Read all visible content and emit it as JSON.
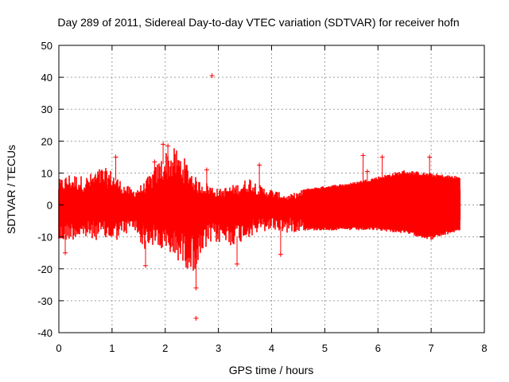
{
  "chart_data": {
    "type": "scatter",
    "title": "Day 289 of 2011, Sidereal Day-to-day VTEC variation (SDTVAR) for receiver hofn",
    "xlabel": "GPS time / hours",
    "ylabel": "SDTVAR / TECUs",
    "xlim": [
      0,
      8
    ],
    "ylim": [
      -40,
      50
    ],
    "xticks": [
      0,
      1,
      2,
      3,
      4,
      5,
      6,
      7,
      8
    ],
    "yticks": [
      -40,
      -30,
      -20,
      -10,
      0,
      10,
      20,
      30,
      40,
      50
    ],
    "grid": true,
    "series_color": "#ff0000",
    "envelope": [
      {
        "t": 0.0,
        "lo": -13,
        "hi": 8
      },
      {
        "t": 0.2,
        "lo": -11,
        "hi": 10
      },
      {
        "t": 0.5,
        "lo": -11,
        "hi": 9
      },
      {
        "t": 0.8,
        "lo": -11,
        "hi": 12
      },
      {
        "t": 1.0,
        "lo": -12,
        "hi": 11
      },
      {
        "t": 1.2,
        "lo": -10,
        "hi": 7
      },
      {
        "t": 1.4,
        "lo": -8,
        "hi": 5
      },
      {
        "t": 1.6,
        "lo": -14,
        "hi": 7
      },
      {
        "t": 1.8,
        "lo": -13,
        "hi": 12
      },
      {
        "t": 2.0,
        "lo": -16,
        "hi": 17
      },
      {
        "t": 2.2,
        "lo": -17,
        "hi": 18
      },
      {
        "t": 2.4,
        "lo": -20,
        "hi": 14
      },
      {
        "t": 2.6,
        "lo": -21,
        "hi": 8
      },
      {
        "t": 2.8,
        "lo": -13,
        "hi": 7
      },
      {
        "t": 3.0,
        "lo": -12,
        "hi": 5
      },
      {
        "t": 3.2,
        "lo": -13,
        "hi": 6
      },
      {
        "t": 3.4,
        "lo": -12,
        "hi": 7
      },
      {
        "t": 3.6,
        "lo": -10,
        "hi": 9
      },
      {
        "t": 3.8,
        "lo": -9,
        "hi": 6
      },
      {
        "t": 4.0,
        "lo": -8,
        "hi": 5
      },
      {
        "t": 4.3,
        "lo": -9,
        "hi": 3
      },
      {
        "t": 4.6,
        "lo": -8,
        "hi": 5
      },
      {
        "t": 5.0,
        "lo": -8,
        "hi": 6
      },
      {
        "t": 5.5,
        "lo": -8,
        "hi": 7
      },
      {
        "t": 6.0,
        "lo": -8,
        "hi": 9
      },
      {
        "t": 6.5,
        "lo": -9,
        "hi": 11
      },
      {
        "t": 7.0,
        "lo": -11,
        "hi": 10
      },
      {
        "t": 7.55,
        "lo": -8,
        "hi": 9
      }
    ],
    "outliers": [
      {
        "x": 2.88,
        "y": 40.5
      },
      {
        "x": 2.58,
        "y": -35.5
      },
      {
        "x": 5.72,
        "y": 15.5
      },
      {
        "x": 6.97,
        "y": 15.0
      },
      {
        "x": 1.07,
        "y": 15.0
      },
      {
        "x": 1.96,
        "y": 19.0
      },
      {
        "x": 2.05,
        "y": 18.5
      },
      {
        "x": 2.58,
        "y": -26.0
      },
      {
        "x": 2.78,
        "y": 11.0
      },
      {
        "x": 4.17,
        "y": -15.5
      },
      {
        "x": 3.35,
        "y": -18.5
      },
      {
        "x": 1.63,
        "y": -19.0
      },
      {
        "x": 0.12,
        "y": -15.0
      },
      {
        "x": 3.77,
        "y": 12.5
      },
      {
        "x": 6.08,
        "y": 15.0
      },
      {
        "x": 5.8,
        "y": 10.5
      },
      {
        "x": 1.8,
        "y": 13.5
      }
    ]
  }
}
